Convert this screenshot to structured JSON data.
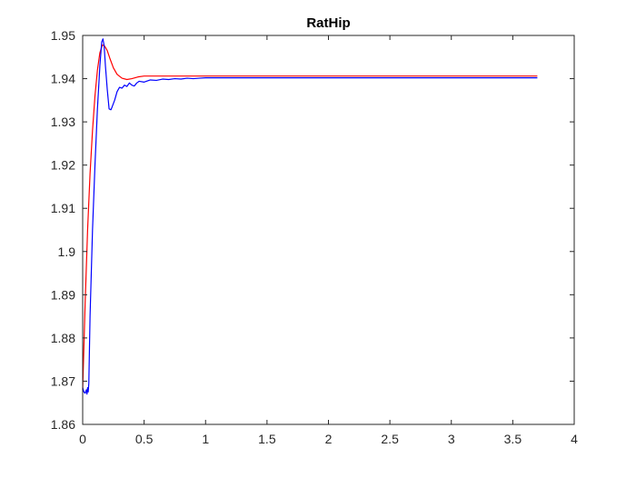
{
  "chart_data": {
    "type": "line",
    "title": "RatHip",
    "xlabel": "",
    "ylabel": "",
    "xlim": [
      0,
      4
    ],
    "ylim": [
      1.86,
      1.95
    ],
    "x_ticks": [
      0,
      0.5,
      1,
      1.5,
      2,
      2.5,
      3,
      3.5,
      4
    ],
    "x_tick_labels": [
      "0",
      "0.5",
      "1",
      "1.5",
      "2",
      "2.5",
      "3",
      "3.5",
      "4"
    ],
    "y_ticks": [
      1.86,
      1.87,
      1.88,
      1.89,
      1.9,
      1.91,
      1.92,
      1.93,
      1.94,
      1.95
    ],
    "y_tick_labels": [
      "1.86",
      "1.87",
      "1.88",
      "1.89",
      "1.9",
      "1.91",
      "1.92",
      "1.93",
      "1.94",
      "1.95"
    ],
    "grid": false,
    "series": [
      {
        "color": "#ff0000",
        "x": [
          0,
          0.02,
          0.04,
          0.06,
          0.08,
          0.1,
          0.12,
          0.14,
          0.16,
          0.18,
          0.2,
          0.22,
          0.25,
          0.28,
          0.32,
          0.36,
          0.4,
          0.45,
          0.5,
          0.6,
          0.7,
          0.8,
          1.0,
          1.5,
          2.0,
          3.0,
          3.7
        ],
        "y": [
          1.868,
          1.888,
          1.905,
          1.918,
          1.928,
          1.936,
          1.942,
          1.946,
          1.9478,
          1.9475,
          1.9465,
          1.9448,
          1.9425,
          1.941,
          1.9401,
          1.9398,
          1.94,
          1.9404,
          1.9406,
          1.9406,
          1.9406,
          1.9406,
          1.9406,
          1.9406,
          1.9406,
          1.9406,
          1.9406
        ]
      },
      {
        "color": "#0000ff",
        "x": [
          0,
          0.01,
          0.02,
          0.03,
          0.035,
          0.04,
          0.045,
          0.05,
          0.06,
          0.08,
          0.1,
          0.12,
          0.14,
          0.155,
          0.165,
          0.175,
          0.185,
          0.2,
          0.215,
          0.23,
          0.24,
          0.26,
          0.28,
          0.3,
          0.32,
          0.34,
          0.36,
          0.38,
          0.4,
          0.42,
          0.44,
          0.46,
          0.5,
          0.55,
          0.6,
          0.65,
          0.7,
          0.75,
          0.8,
          0.85,
          0.9,
          0.95,
          1.0,
          1.2,
          1.5,
          2.0,
          3.0,
          3.7
        ],
        "y": [
          1.8685,
          1.8675,
          1.8672,
          1.868,
          1.867,
          1.8685,
          1.8675,
          1.8695,
          1.885,
          1.905,
          1.92,
          1.933,
          1.943,
          1.9485,
          1.9492,
          1.9475,
          1.943,
          1.9375,
          1.933,
          1.9328,
          1.9335,
          1.935,
          1.937,
          1.938,
          1.9378,
          1.9385,
          1.9382,
          1.939,
          1.9385,
          1.9383,
          1.939,
          1.9394,
          1.9392,
          1.9397,
          1.9396,
          1.9399,
          1.9398,
          1.94,
          1.9399,
          1.9401,
          1.94,
          1.9401,
          1.9402,
          1.9402,
          1.9402,
          1.9402,
          1.9402,
          1.9402
        ]
      }
    ]
  }
}
